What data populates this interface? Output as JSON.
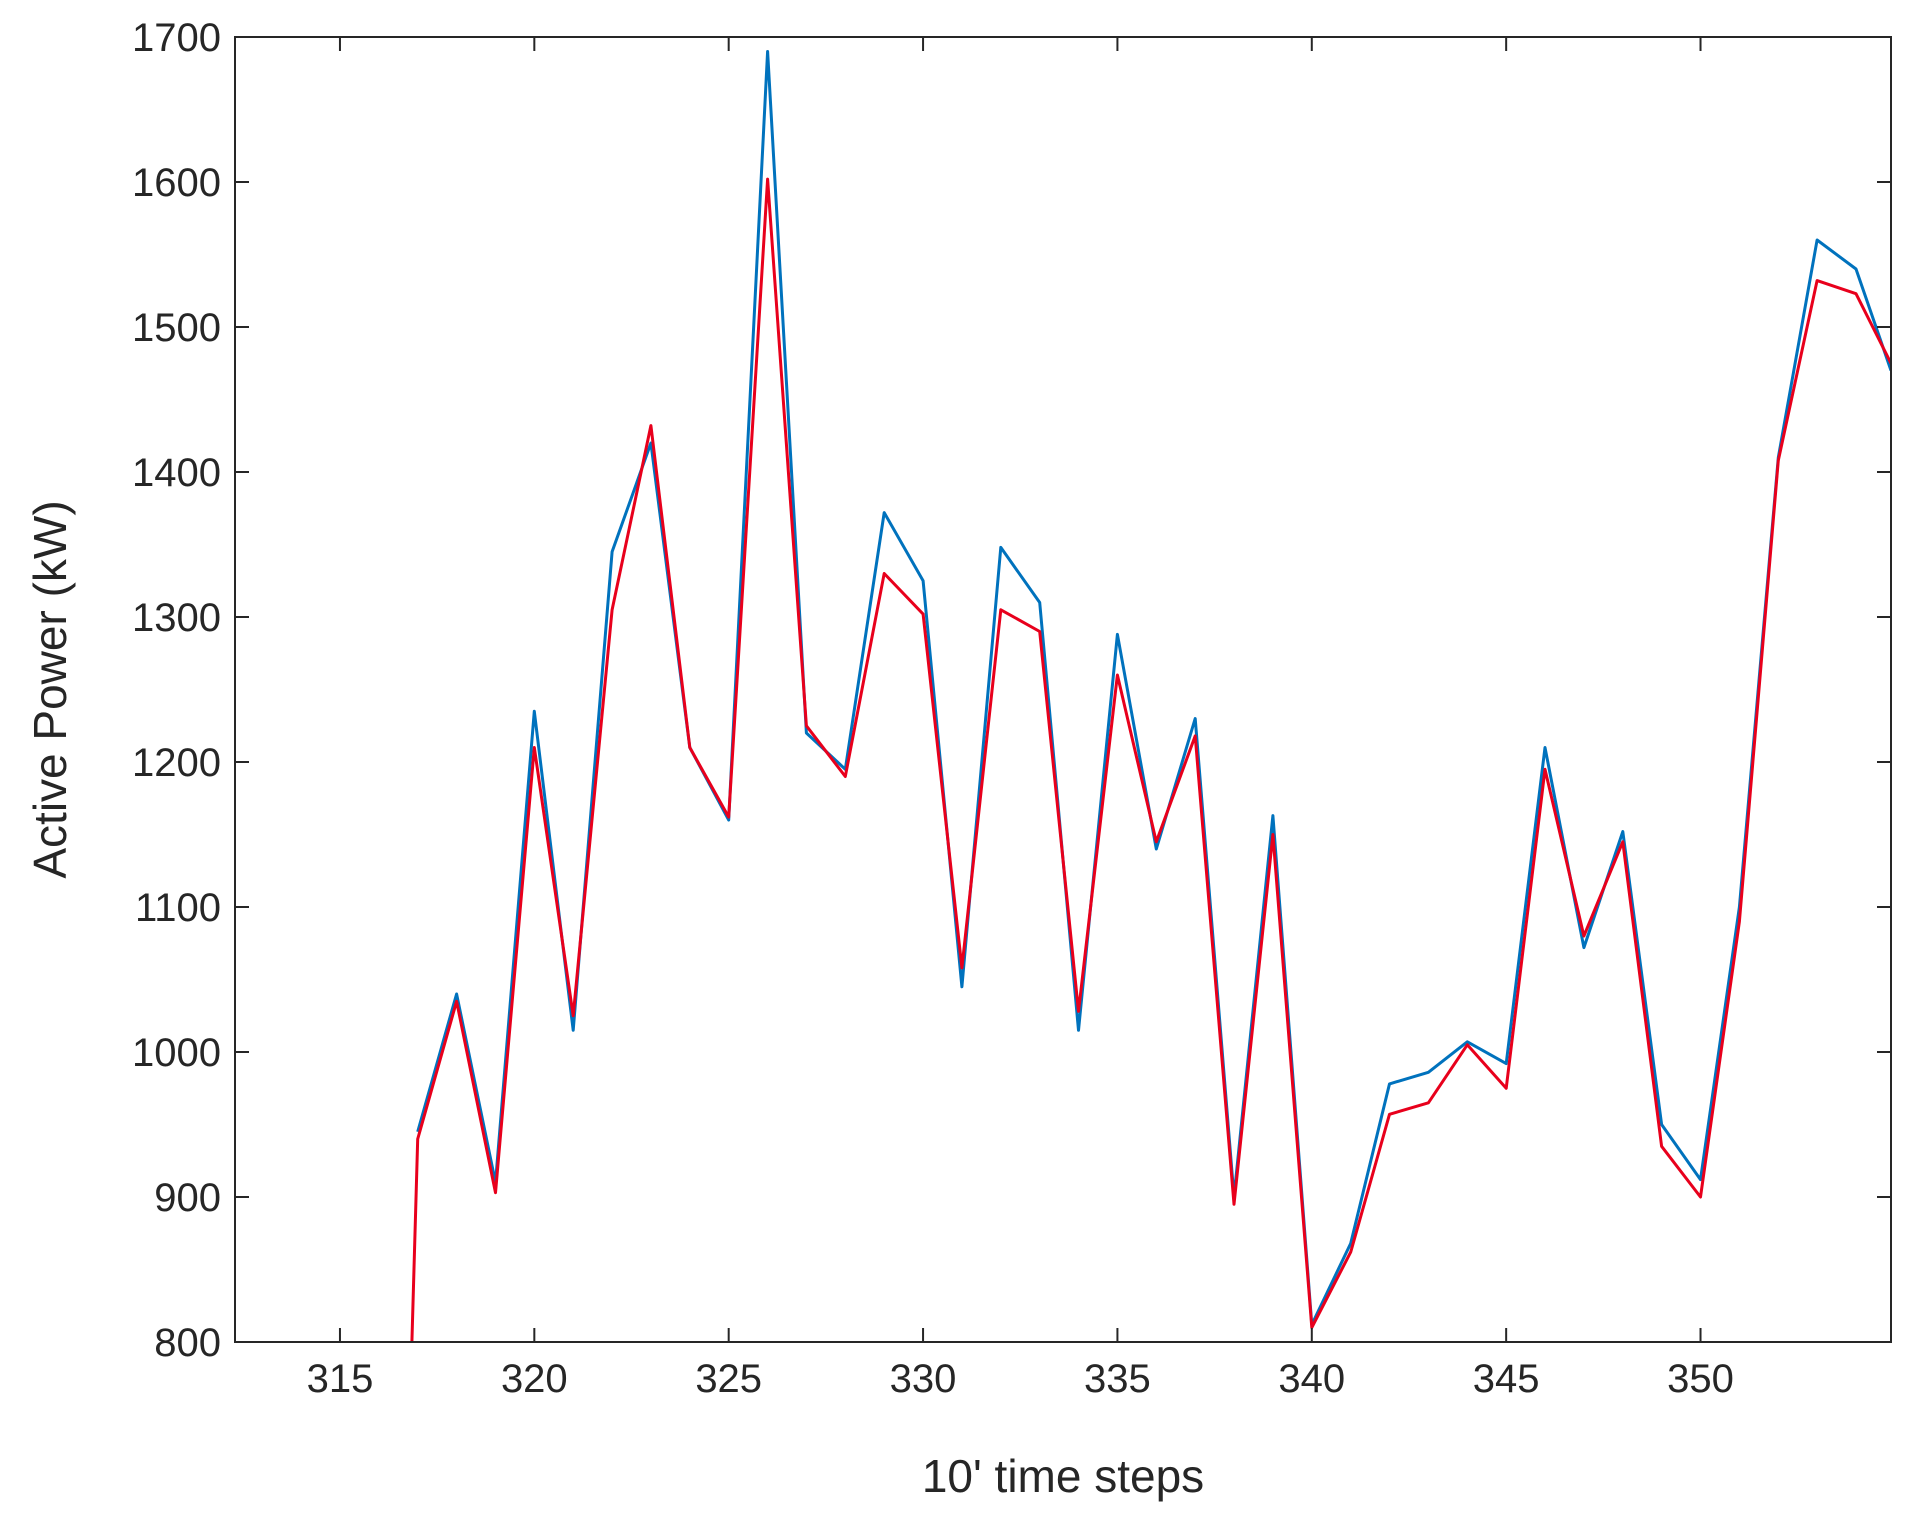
{
  "chart_data": {
    "type": "line",
    "title": "",
    "xlabel": "10' time steps",
    "ylabel": "Active Power (kW)",
    "xlim": [
      312.3,
      354.9
    ],
    "ylim": [
      800,
      1700
    ],
    "xticks": [
      315,
      320,
      325,
      330,
      335,
      340,
      345,
      350
    ],
    "yticks": [
      800,
      900,
      1000,
      1100,
      1200,
      1300,
      1400,
      1500,
      1600,
      1700
    ],
    "grid": false,
    "legend": "none",
    "series": [
      {
        "color": "#0072bd",
        "x": [
          317,
          318,
          319,
          320,
          321,
          322,
          323,
          324,
          325,
          326,
          327,
          328,
          329,
          330,
          331,
          332,
          333,
          334,
          335,
          336,
          337,
          338,
          339,
          340,
          341,
          342,
          343,
          344,
          345,
          346,
          347,
          348,
          349,
          350,
          351,
          352,
          353,
          354,
          354.9
        ],
        "y": [
          945,
          1040,
          910,
          1235,
          1015,
          1345,
          1420,
          1210,
          1160,
          1690,
          1220,
          1195,
          1372,
          1325,
          1045,
          1348,
          1310,
          1015,
          1288,
          1140,
          1230,
          900,
          1163,
          812,
          868,
          978,
          986,
          1007,
          992,
          1210,
          1072,
          1152,
          950,
          912,
          1100,
          1410,
          1560,
          1540,
          1470
        ]
      },
      {
        "color": "#e8001c",
        "x": [
          316.85,
          317,
          318,
          319,
          320,
          321,
          322,
          323,
          324,
          325,
          326,
          327,
          328,
          329,
          330,
          331,
          332,
          333,
          334,
          335,
          336,
          337,
          338,
          339,
          340,
          341,
          342,
          343,
          344,
          345,
          346,
          347,
          348,
          349,
          350,
          351,
          352,
          353,
          354,
          354.9
        ],
        "y": [
          800,
          940,
          1035,
          903,
          1210,
          1025,
          1305,
          1432,
          1210,
          1162,
          1602,
          1225,
          1190,
          1330,
          1302,
          1058,
          1305,
          1290,
          1028,
          1260,
          1145,
          1218,
          895,
          1150,
          810,
          862,
          957,
          965,
          1005,
          975,
          1195,
          1080,
          1145,
          935,
          900,
          1090,
          1408,
          1532,
          1523,
          1475
        ]
      }
    ]
  }
}
